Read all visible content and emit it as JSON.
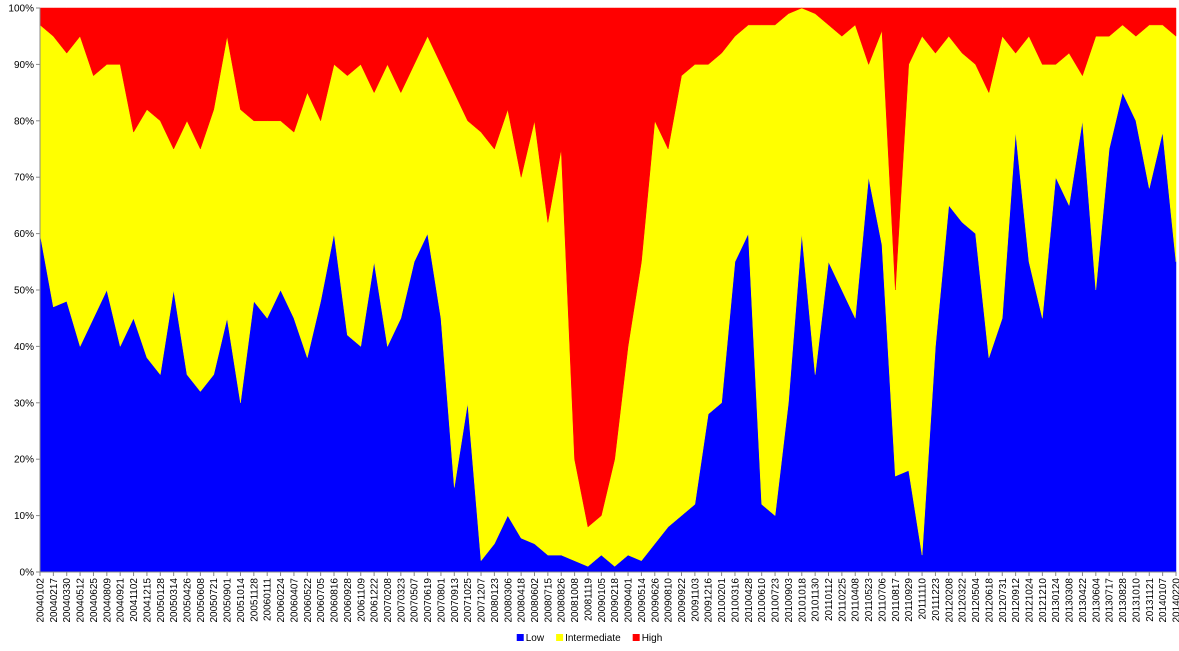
{
  "chart_data": {
    "type": "stacked_area_100",
    "categories": [
      "20040102",
      "20040217",
      "20040330",
      "20040512",
      "20040625",
      "20040809",
      "20040921",
      "20041102",
      "20041215",
      "20050128",
      "20050314",
      "20050426",
      "20050608",
      "20050721",
      "20050901",
      "20051014",
      "20051128",
      "20060111",
      "20060224",
      "20060407",
      "20060522",
      "20060705",
      "20060816",
      "20060928",
      "20061109",
      "20061222",
      "20070208",
      "20070323",
      "20070507",
      "20070619",
      "20070801",
      "20070913",
      "20071025",
      "20071207",
      "20080123",
      "20080306",
      "20080418",
      "20080602",
      "20080715",
      "20080826",
      "20081008",
      "20081119",
      "20090105",
      "20090218",
      "20090401",
      "20090514",
      "20090626",
      "20090810",
      "20090922",
      "20091103",
      "20091216",
      "20100201",
      "20100316",
      "20100428",
      "20100610",
      "20100723",
      "20100903",
      "20101018",
      "20101130",
      "20110112",
      "20110225",
      "20110408",
      "20110523",
      "20110706",
      "20110817",
      "20110929",
      "20111110",
      "20111223",
      "20120208",
      "20120322",
      "20120504",
      "20120618",
      "20120731",
      "20120912",
      "20121024",
      "20121210",
      "20130124",
      "20130308",
      "20130422",
      "20130604",
      "20130717",
      "20130828",
      "20131010",
      "20131121",
      "20140107",
      "20140220"
    ],
    "series": [
      {
        "name": "Low",
        "color": "#0000ff",
        "values": [
          60,
          47,
          48,
          40,
          45,
          50,
          40,
          45,
          38,
          35,
          50,
          35,
          32,
          35,
          45,
          30,
          48,
          45,
          50,
          45,
          38,
          48,
          60,
          42,
          40,
          55,
          40,
          45,
          55,
          60,
          45,
          15,
          30,
          2,
          5,
          10,
          6,
          5,
          3,
          3,
          2,
          1,
          3,
          1,
          3,
          2,
          5,
          8,
          10,
          12,
          28,
          30,
          55,
          60,
          12,
          10,
          30,
          60,
          35,
          55,
          50,
          45,
          70,
          58,
          17,
          18,
          3,
          40,
          65,
          62,
          60,
          38,
          45,
          78,
          55,
          45,
          70,
          65,
          80,
          50,
          75,
          85,
          80,
          68,
          78,
          55
        ]
      },
      {
        "name": "Intermediate",
        "color": "#ffff00",
        "values": [
          37,
          48,
          44,
          55,
          43,
          40,
          50,
          33,
          44,
          45,
          25,
          45,
          43,
          47,
          50,
          52,
          32,
          35,
          30,
          33,
          47,
          32,
          30,
          46,
          50,
          30,
          50,
          40,
          35,
          35,
          45,
          70,
          50,
          76,
          70,
          72,
          64,
          75,
          59,
          72,
          18,
          7,
          7,
          19,
          37,
          53,
          75,
          67,
          78,
          78,
          62,
          62,
          40,
          37,
          85,
          87,
          69,
          40,
          64,
          42,
          45,
          52,
          20,
          38,
          33,
          72,
          92,
          52,
          30,
          30,
          30,
          47,
          50,
          14,
          40,
          45,
          20,
          27,
          8,
          45,
          20,
          12,
          15,
          29,
          19,
          40
        ]
      },
      {
        "name": "High",
        "color": "#ff0000",
        "values": [
          3,
          5,
          8,
          5,
          12,
          10,
          10,
          22,
          18,
          20,
          25,
          20,
          25,
          18,
          5,
          18,
          20,
          20,
          20,
          22,
          15,
          20,
          10,
          12,
          10,
          15,
          10,
          15,
          10,
          5,
          10,
          15,
          20,
          22,
          25,
          18,
          30,
          20,
          38,
          25,
          80,
          92,
          90,
          80,
          60,
          45,
          20,
          25,
          12,
          10,
          10,
          8,
          5,
          3,
          3,
          3,
          1,
          0,
          1,
          3,
          5,
          3,
          10,
          4,
          50,
          10,
          5,
          8,
          5,
          8,
          10,
          15,
          5,
          8,
          5,
          10,
          10,
          8,
          12,
          5,
          5,
          3,
          5,
          3,
          3,
          5
        ]
      }
    ],
    "ylim": [
      0,
      100
    ],
    "yticks": [
      {
        "value": 0,
        "label": "0%"
      },
      {
        "value": 10,
        "label": "10%"
      },
      {
        "value": 20,
        "label": "20%"
      },
      {
        "value": 30,
        "label": "30%"
      },
      {
        "value": 40,
        "label": "40%"
      },
      {
        "value": 50,
        "label": "50%"
      },
      {
        "value": 60,
        "label": "60%"
      },
      {
        "value": 70,
        "label": "70%"
      },
      {
        "value": 80,
        "label": "80%"
      },
      {
        "value": 90,
        "label": "90%"
      },
      {
        "value": 100,
        "label": "100%"
      }
    ],
    "grid": false,
    "legend": "bottom"
  }
}
